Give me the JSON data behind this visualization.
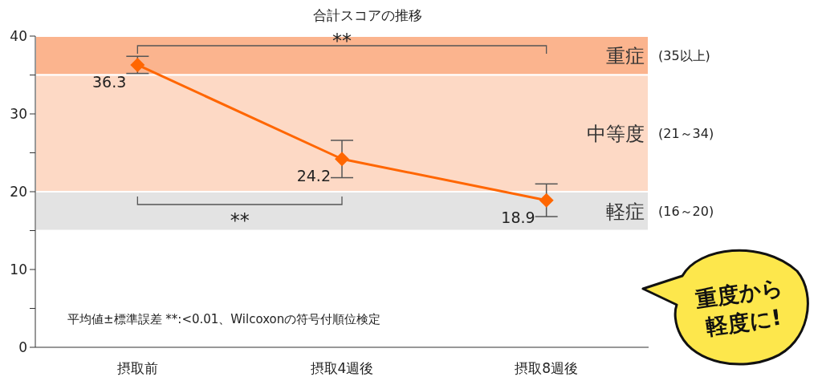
{
  "chart_data": {
    "type": "line",
    "title": "合計スコアの推移",
    "categories": [
      "摂取前",
      "摂取4週後",
      "摂取8週後"
    ],
    "series": [
      {
        "color": "#ff6600",
        "values": [
          36.3,
          24.2,
          18.9
        ],
        "errors": [
          1.1,
          2.4,
          2.1
        ]
      }
    ],
    "data_labels": true,
    "marker": "diamond",
    "line_style": "solid",
    "ylim": [
      0,
      40
    ],
    "yticks": [
      0,
      {
        "value": 5,
        "label": null
      },
      10,
      {
        "value": 15,
        "label": null
      },
      20,
      {
        "value": 25,
        "label": null
      },
      30,
      {
        "value": 35,
        "label": null
      },
      40
    ],
    "bands": [
      {
        "axis": "y",
        "from": 35,
        "to": 40,
        "label": "重症",
        "color": "#fbb48e"
      },
      {
        "axis": "y",
        "from": 20,
        "to": 35,
        "label": "中等度",
        "color": "#fdd9c5"
      },
      {
        "axis": "y",
        "from": 15,
        "to": 20,
        "label": "軽症",
        "color": "#e3e3e3"
      }
    ],
    "annotations": [
      "**",
      "**",
      "平均値±標準誤差 **:<0.01、Wilcoxonの符号付順位検定",
      "重度から軽度に!",
      "(35以上)",
      "(21～34)",
      "(16～20)"
    ]
  }
}
